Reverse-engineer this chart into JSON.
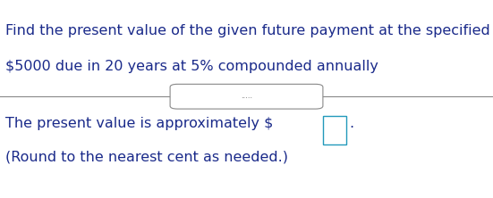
{
  "line1": "Find the present value of the given future payment at the specified interest r",
  "line2": "$5000 due in 20 years at 5% compounded annually",
  "line3": "The present value is approximately $",
  "line4": "(Round to the nearest cent as needed.)",
  "text_color": "#1a2a8a",
  "bg_color": "#ffffff",
  "divider_color": "#888888",
  "box_border_color": "#2299bb",
  "dots": ".....",
  "font_size": 11.5,
  "fig_width": 5.51,
  "fig_height": 2.22
}
